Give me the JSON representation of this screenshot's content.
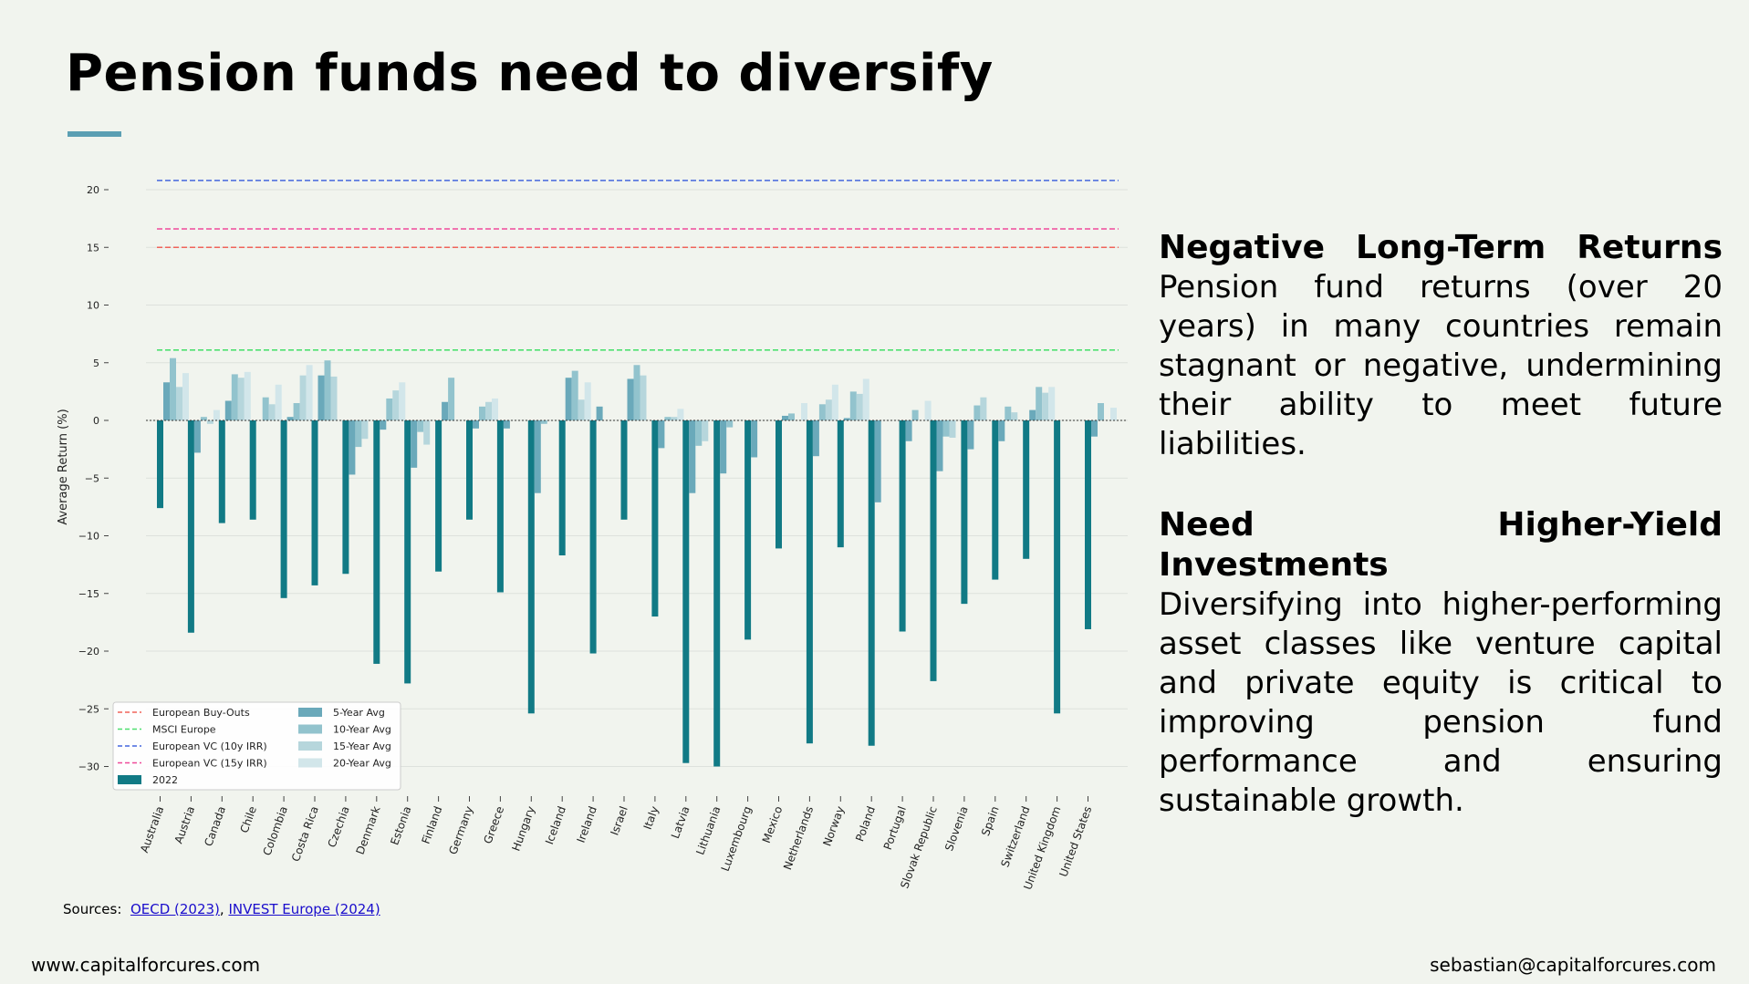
{
  "page": {
    "title": "Pension funds need to diversify",
    "website": "www.capitalforcures.com",
    "email": "sebastian@capitalforcures.com"
  },
  "side": {
    "heading1": "Negative Long-Term Returns",
    "body1": "Pension fund returns (over 20 years) in many countries remain stagnant or negative, undermining their ability to meet future liabilities.",
    "heading2": "Need Higher-Yield Investments",
    "body2": "Diversifying into higher-performing asset classes like venture capital and private equity is critical to improving pension fund performance and ensuring sustainable growth."
  },
  "sources": {
    "label": "Sources:",
    "link1": "OECD (2023)",
    "separator": ",",
    "link2": "INVEST Europe (2024)"
  },
  "colors": {
    "y2022": "#117a85",
    "y5": "#6aa9ba",
    "y10": "#92c3cd",
    "y15": "#b6d6dc",
    "y20": "#d2e6ea",
    "buyouts": "#f0645a",
    "msci": "#4ee070",
    "vc10": "#4466dd",
    "vc15": "#ef4a9a"
  },
  "chart_data": {
    "type": "bar",
    "title": "",
    "xlabel": "",
    "ylabel": "Average Return (%)",
    "ylim": [
      -32,
      22
    ],
    "yticks": [
      20,
      15,
      10,
      5,
      0,
      -5,
      -10,
      -15,
      -20,
      -25,
      -30
    ],
    "ytick_labels": [
      "20",
      "15",
      "10",
      "5",
      "0",
      "−5",
      "−10",
      "−15",
      "−20",
      "−25",
      "−30"
    ],
    "grid": true,
    "legend_position": "lower-left",
    "categories": [
      "Australia",
      "Austria",
      "Canada",
      "Chile",
      "Colombia",
      "Costa Rica",
      "Czechia",
      "Denmark",
      "Estonia",
      "Finland",
      "Germany",
      "Greece",
      "Hungary",
      "Iceland",
      "Ireland",
      "Israel",
      "Italy",
      "Latvia",
      "Lithuania",
      "Luxembourg",
      "Mexico",
      "Netherlands",
      "Norway",
      "Poland",
      "Portugal",
      "Slovak Republic",
      "Slovenia",
      "Spain",
      "Switzerland",
      "United Kingdom",
      "United States"
    ],
    "series": [
      {
        "name": "2022",
        "color_key": "y2022",
        "values": [
          -7.6,
          -18.4,
          -8.9,
          -8.6,
          -15.4,
          -14.3,
          -13.3,
          -21.1,
          -22.8,
          -13.1,
          -8.6,
          -14.9,
          -25.4,
          -11.7,
          -20.2,
          -8.6,
          -17.0,
          -29.7,
          -30.0,
          -19.0,
          -11.1,
          -28.0,
          -11.0,
          -28.2,
          -18.3,
          -22.6,
          -15.9,
          -13.8,
          -12.0,
          -25.4,
          -18.1
        ]
      },
      {
        "name": "5-Year Avg",
        "color_key": "y5",
        "values": [
          3.3,
          -2.8,
          1.7,
          0.0,
          0.3,
          3.9,
          -4.7,
          -0.8,
          -4.1,
          1.6,
          -0.7,
          -0.7,
          -6.3,
          3.7,
          1.2,
          3.6,
          -2.4,
          -6.3,
          -4.6,
          -3.2,
          0.4,
          -3.1,
          0.2,
          -7.1,
          -1.8,
          -4.4,
          -2.5,
          -1.8,
          0.9,
          0.0,
          -1.4
        ]
      },
      {
        "name": "10-Year Avg",
        "color_key": "y10",
        "values": [
          5.4,
          0.3,
          4.0,
          2.0,
          1.5,
          5.2,
          -2.3,
          1.9,
          -1.0,
          3.7,
          1.2,
          0.0,
          -0.3,
          4.3,
          0.0,
          4.8,
          0.3,
          -2.2,
          -0.6,
          0.0,
          0.6,
          1.4,
          2.5,
          0.0,
          0.9,
          -1.4,
          1.3,
          1.2,
          2.9,
          0.0,
          1.5
        ]
      },
      {
        "name": "15-Year Avg",
        "color_key": "y15",
        "values": [
          2.9,
          -0.3,
          3.7,
          1.4,
          3.9,
          3.8,
          -1.6,
          2.6,
          -2.1,
          0.0,
          1.6,
          0.0,
          0.0,
          1.8,
          0.0,
          3.9,
          0.3,
          -1.8,
          0.0,
          0.0,
          0.0,
          1.8,
          2.3,
          0.0,
          0.0,
          -1.5,
          2.0,
          0.7,
          2.4,
          0.0,
          0.0
        ]
      },
      {
        "name": "20-Year Avg",
        "color_key": "y20",
        "values": [
          4.1,
          0.9,
          4.2,
          3.1,
          4.8,
          0.0,
          0.0,
          3.3,
          0.0,
          0.0,
          1.9,
          0.0,
          0.0,
          3.3,
          0.0,
          0.0,
          1.0,
          0.0,
          0.0,
          0.0,
          1.5,
          3.1,
          3.6,
          0.0,
          1.7,
          0.0,
          0.0,
          0.0,
          2.9,
          0.0,
          1.1
        ]
      }
    ],
    "reference_lines": [
      {
        "name": "European Buy-Outs",
        "value": 15.0,
        "color_key": "buyouts"
      },
      {
        "name": "MSCI Europe",
        "value": 6.1,
        "color_key": "msci"
      },
      {
        "name": "European VC (10y IRR)",
        "value": 20.8,
        "color_key": "vc10"
      },
      {
        "name": "European VC (15y IRR)",
        "value": 16.6,
        "color_key": "vc15"
      }
    ]
  }
}
